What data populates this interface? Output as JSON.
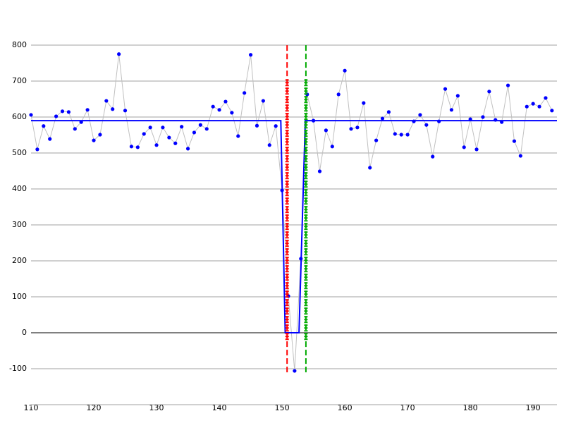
{
  "chart_data": {
    "type": "line",
    "xlim": [
      110,
      193.8
    ],
    "ylim": [
      -200,
      900
    ],
    "xticks": [
      110,
      120,
      130,
      140,
      150,
      160,
      170,
      180,
      190
    ],
    "yticks": [
      -100,
      0,
      100,
      200,
      300,
      400,
      500,
      600,
      700,
      800
    ],
    "grid": true,
    "zero_line_color": "#000000",
    "series": [
      {
        "color": "#0000ff",
        "line_color": "#c0c0c0",
        "markers": true,
        "x": [
          110,
          111,
          112,
          113,
          114,
          115,
          116,
          117,
          118,
          119,
          120,
          121,
          122,
          123,
          124,
          125,
          126,
          127,
          128,
          129,
          130,
          131,
          132,
          133,
          134,
          135,
          136,
          137,
          138,
          139,
          140,
          141,
          142,
          143,
          144,
          145,
          146,
          147,
          148,
          149,
          150,
          151,
          152,
          153,
          154,
          155,
          156,
          157,
          158,
          159,
          160,
          161,
          162,
          163,
          164,
          165,
          166,
          167,
          168,
          169,
          170,
          171,
          172,
          173,
          174,
          175,
          176,
          177,
          178,
          179,
          180,
          181,
          182,
          183,
          184,
          185,
          186,
          187,
          188,
          189,
          190,
          191,
          192,
          193
        ],
        "values": [
          606,
          510,
          575,
          539,
          602,
          616,
          614,
          567,
          586,
          620,
          535,
          551,
          645,
          622,
          775,
          618,
          518,
          516,
          553,
          571,
          522,
          571,
          543,
          527,
          573,
          512,
          557,
          578,
          567,
          629,
          620,
          643,
          612,
          547,
          667,
          773,
          576,
          645,
          522,
          575,
          396,
          102,
          -106,
          206,
          663,
          590,
          449,
          563,
          518,
          663,
          729,
          567,
          571,
          639,
          459,
          535,
          596,
          614,
          553,
          551,
          551,
          588,
          606,
          578,
          490,
          588,
          678,
          620,
          659,
          516,
          594,
          510,
          600,
          671,
          592,
          586,
          688,
          533,
          492,
          629,
          637,
          629,
          653,
          618
        ]
      },
      {
        "color": "#0000ff",
        "line_color": "#0000ff",
        "markers": false,
        "x": [
          110,
          149.8,
          150.5,
          152.7,
          153.7,
          193.8
        ],
        "values": [
          590,
          590,
          0,
          0,
          590,
          590
        ]
      }
    ],
    "vlines": [
      {
        "x": 150.8,
        "color": "#ff0000",
        "y": [
          -110,
          800
        ],
        "band_y": [
          -20,
          705
        ]
      },
      {
        "x": 153.8,
        "color": "#00aa00",
        "y": [
          -110,
          800
        ],
        "band_y": [
          -20,
          705
        ]
      }
    ]
  }
}
